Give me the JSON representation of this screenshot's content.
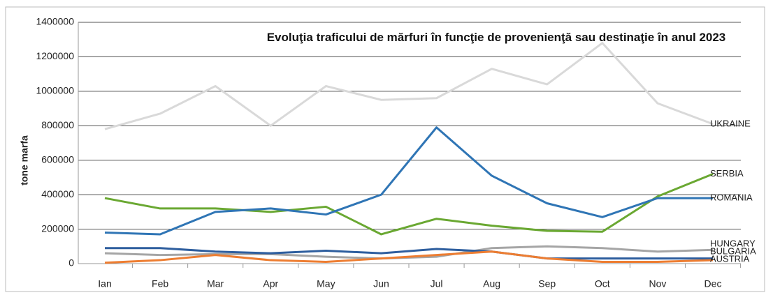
{
  "chart_data": {
    "type": "line",
    "title": "Evoluţia traficului de mărfuri în funcţie de provenienţă sau destinaţie în anul 2023",
    "y_label": "tone marfa",
    "categories": [
      "Ian",
      "Feb",
      "Mar",
      "Apr",
      "May",
      "Jun",
      "Jul",
      "Aug",
      "Sep",
      "Oct",
      "Nov",
      "Dec"
    ],
    "ylim": [
      0,
      1400000
    ],
    "yticks": [
      0,
      200000,
      400000,
      600000,
      800000,
      1000000,
      1200000,
      1400000
    ],
    "grid": true,
    "series": [
      {
        "name": "UKRAINE",
        "color": "#d9d9d9",
        "values": [
          780000,
          870000,
          1030000,
          800000,
          1030000,
          950000,
          960000,
          1130000,
          1040000,
          1280000,
          930000,
          810000
        ]
      },
      {
        "name": "SERBIA",
        "color": "#6aa832",
        "values": [
          380000,
          320000,
          320000,
          300000,
          330000,
          170000,
          260000,
          220000,
          190000,
          185000,
          390000,
          520000
        ]
      },
      {
        "name": "ROMANIA",
        "color": "#2f75b5",
        "values": [
          180000,
          170000,
          300000,
          320000,
          285000,
          400000,
          790000,
          510000,
          350000,
          270000,
          380000,
          380000
        ]
      },
      {
        "name": "HUNGARY",
        "color": "#a5a5a5",
        "values": [
          60000,
          50000,
          55000,
          55000,
          40000,
          30000,
          40000,
          90000,
          100000,
          90000,
          70000,
          80000
        ]
      },
      {
        "name": "BULGARIA",
        "color": "#2e5e9e",
        "values": [
          90000,
          90000,
          70000,
          60000,
          75000,
          60000,
          85000,
          70000,
          30000,
          30000,
          30000,
          30000
        ]
      },
      {
        "name": "AUSTRIA",
        "color": "#ed7d31",
        "values": [
          5000,
          20000,
          50000,
          20000,
          10000,
          30000,
          50000,
          70000,
          30000,
          10000,
          10000,
          20000
        ]
      }
    ]
  }
}
